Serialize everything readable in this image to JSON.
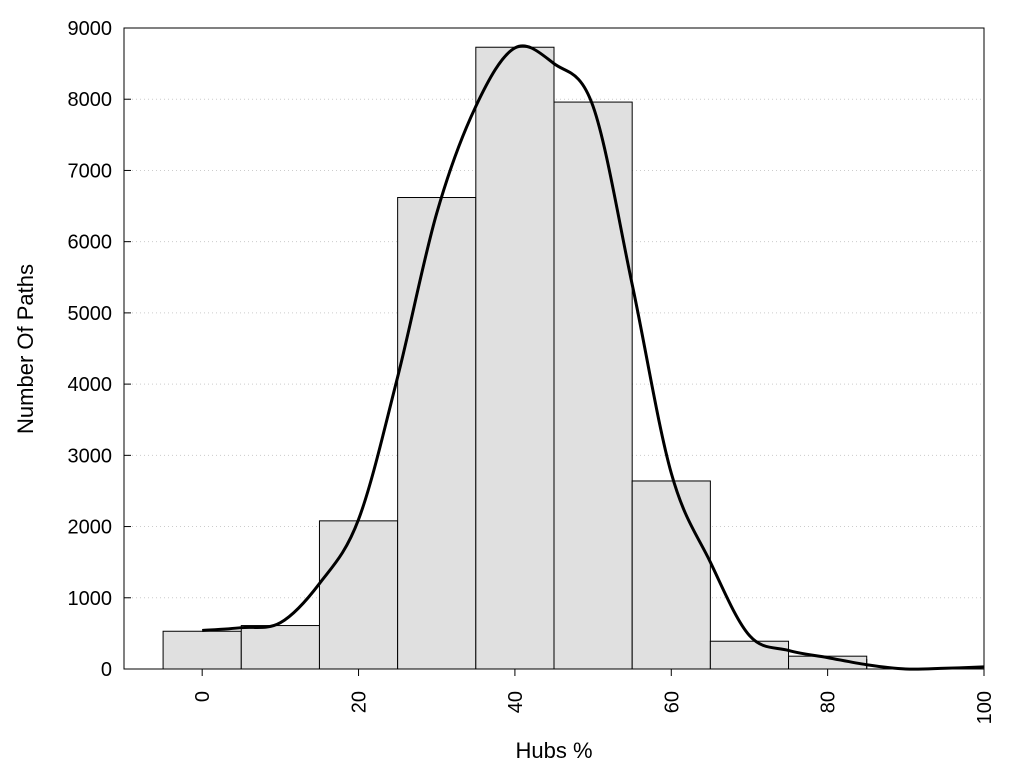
{
  "chart_data": {
    "type": "bar",
    "xlabel": "Hubs %",
    "ylabel": "Number Of Paths",
    "xlim": [
      -10,
      100
    ],
    "ylim": [
      0,
      9000
    ],
    "x_ticks": [
      0,
      20,
      40,
      60,
      80,
      100
    ],
    "y_ticks": [
      0,
      1000,
      2000,
      3000,
      4000,
      5000,
      6000,
      7000,
      8000,
      9000
    ],
    "grid": "horizontal dotted",
    "bin_width": 10,
    "bars": [
      {
        "x": 0,
        "value": 530
      },
      {
        "x": 10,
        "value": 610
      },
      {
        "x": 20,
        "value": 2080
      },
      {
        "x": 30,
        "value": 6620
      },
      {
        "x": 40,
        "value": 8730
      },
      {
        "x": 50,
        "value": 7960
      },
      {
        "x": 60,
        "value": 2640
      },
      {
        "x": 70,
        "value": 390
      },
      {
        "x": 80,
        "value": 180
      },
      {
        "x": 90,
        "value": 0
      }
    ],
    "curve": {
      "x": [
        0,
        5,
        10,
        15,
        20,
        25,
        30,
        35,
        40,
        45,
        50,
        55,
        60,
        65,
        70,
        75,
        80,
        85,
        90,
        95,
        100
      ],
      "y": [
        540,
        580,
        650,
        1200,
        2100,
        4100,
        6400,
        7900,
        8720,
        8500,
        7900,
        5400,
        2750,
        1500,
        470,
        260,
        160,
        60,
        0,
        10,
        30
      ]
    },
    "colors": {
      "bar_fill": "#e0e0e0",
      "bar_stroke": "#000000",
      "curve": "#000000",
      "grid": "#cccccc"
    }
  }
}
